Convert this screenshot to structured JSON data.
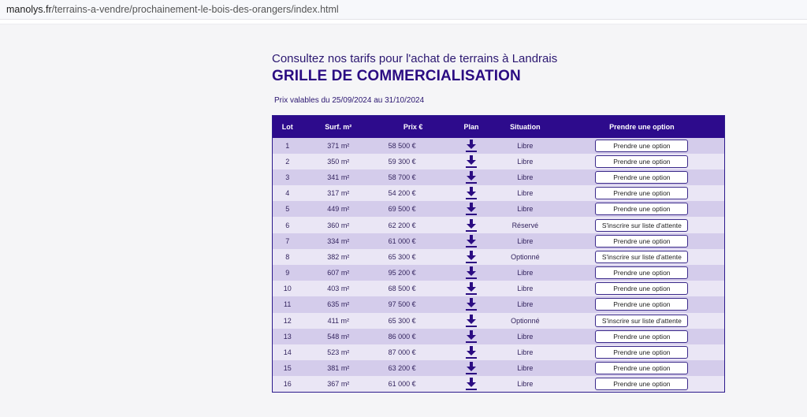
{
  "browser": {
    "url_domain": "manolys.fr",
    "url_path": "/terrains-a-vendre/prochainement-le-bois-des-orangers/index.html"
  },
  "page": {
    "subtitle": "Consultez nos tarifs pour l'achat de terrains à Landrais",
    "title": "GRILLE DE COMMERCIALISATION",
    "validity": "Prix valables du 25/09/2024 au 31/10/2024"
  },
  "table": {
    "headers": {
      "lot": "Lot",
      "surface": "Surf. m²",
      "price": "Prix €",
      "plan": "Plan",
      "situation": "Situation",
      "action": "Prendre une option"
    },
    "rows": [
      {
        "lot": "1",
        "surface": "371 m²",
        "price": "58 500 €",
        "situation": "Libre",
        "status": "libre",
        "action": "Prendre une option"
      },
      {
        "lot": "2",
        "surface": "350 m²",
        "price": "59 300 €",
        "situation": "Libre",
        "status": "libre",
        "action": "Prendre une option"
      },
      {
        "lot": "3",
        "surface": "341 m²",
        "price": "58 700 €",
        "situation": "Libre",
        "status": "libre",
        "action": "Prendre une option"
      },
      {
        "lot": "4",
        "surface": "317 m²",
        "price": "54 200 €",
        "situation": "Libre",
        "status": "libre",
        "action": "Prendre une option"
      },
      {
        "lot": "5",
        "surface": "449 m²",
        "price": "69 500 €",
        "situation": "Libre",
        "status": "libre",
        "action": "Prendre une option"
      },
      {
        "lot": "6",
        "surface": "360 m²",
        "price": "62 200 €",
        "situation": "Réservé",
        "status": "reserve",
        "action": "S'inscrire sur liste d'attente"
      },
      {
        "lot": "7",
        "surface": "334 m²",
        "price": "61 000 €",
        "situation": "Libre",
        "status": "libre",
        "action": "Prendre une option"
      },
      {
        "lot": "8",
        "surface": "382 m²",
        "price": "65 300 €",
        "situation": "Optionné",
        "status": "optionne",
        "action": "S'inscrire sur liste d'attente"
      },
      {
        "lot": "9",
        "surface": "607 m²",
        "price": "95 200 €",
        "situation": "Libre",
        "status": "libre",
        "action": "Prendre une option"
      },
      {
        "lot": "10",
        "surface": "403 m²",
        "price": "68 500 €",
        "situation": "Libre",
        "status": "libre",
        "action": "Prendre une option"
      },
      {
        "lot": "11",
        "surface": "635 m²",
        "price": "97 500 €",
        "situation": "Libre",
        "status": "libre",
        "action": "Prendre une option"
      },
      {
        "lot": "12",
        "surface": "411 m²",
        "price": "65 300 €",
        "situation": "Optionné",
        "status": "optionne",
        "action": "S'inscrire sur liste d'attente"
      },
      {
        "lot": "13",
        "surface": "548 m²",
        "price": "86 000 €",
        "situation": "Libre",
        "status": "libre",
        "action": "Prendre une option"
      },
      {
        "lot": "14",
        "surface": "523 m²",
        "price": "87 000 €",
        "situation": "Libre",
        "status": "libre",
        "action": "Prendre une option"
      },
      {
        "lot": "15",
        "surface": "381 m²",
        "price": "63 200 €",
        "situation": "Libre",
        "status": "libre",
        "action": "Prendre une option"
      },
      {
        "lot": "16",
        "surface": "367 m²",
        "price": "61 000 €",
        "situation": "Libre",
        "status": "libre",
        "action": "Prendre une option"
      }
    ]
  },
  "icons": {
    "plan": "download-arrow-icon"
  },
  "colors": {
    "header_bg": "#2d0b8c",
    "libre": "#3a9a3a",
    "reserve": "#e67e22"
  }
}
